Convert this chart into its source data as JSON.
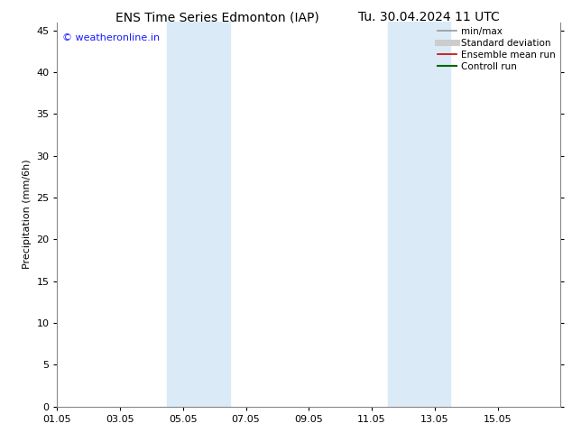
{
  "title_left": "ENS Time Series Edmonton (IAP)",
  "title_right": "Tu. 30.04.2024 11 UTC",
  "ylabel": "Precipitation (mm/6h)",
  "watermark": "© weatheronline.in",
  "watermark_color": "#1a1aff",
  "xlim": [
    0,
    16
  ],
  "ylim": [
    0,
    46
  ],
  "yticks": [
    0,
    5,
    10,
    15,
    20,
    25,
    30,
    35,
    40,
    45
  ],
  "xtick_labels": [
    "01.05",
    "03.05",
    "05.05",
    "07.05",
    "09.05",
    "11.05",
    "13.05",
    "15.05"
  ],
  "xtick_positions": [
    0,
    2,
    4,
    6,
    8,
    10,
    12,
    14
  ],
  "shaded_bands": [
    {
      "xmin": 3.5,
      "xmax": 5.5,
      "color": "#daeaf7"
    },
    {
      "xmin": 10.5,
      "xmax": 12.5,
      "color": "#daeaf7"
    }
  ],
  "legend_items": [
    {
      "label": "min/max",
      "color": "#999999",
      "linewidth": 1.2,
      "linestyle": "-"
    },
    {
      "label": "Standard deviation",
      "color": "#cccccc",
      "linewidth": 5,
      "linestyle": "-"
    },
    {
      "label": "Ensemble mean run",
      "color": "#cc0000",
      "linewidth": 1.2,
      "linestyle": "-"
    },
    {
      "label": "Controll run",
      "color": "#006600",
      "linewidth": 1.5,
      "linestyle": "-"
    }
  ],
  "bg_color": "#ffffff",
  "plot_bg_color": "#ffffff",
  "title_fontsize": 10,
  "tick_fontsize": 8,
  "ylabel_fontsize": 8,
  "legend_fontsize": 7.5
}
